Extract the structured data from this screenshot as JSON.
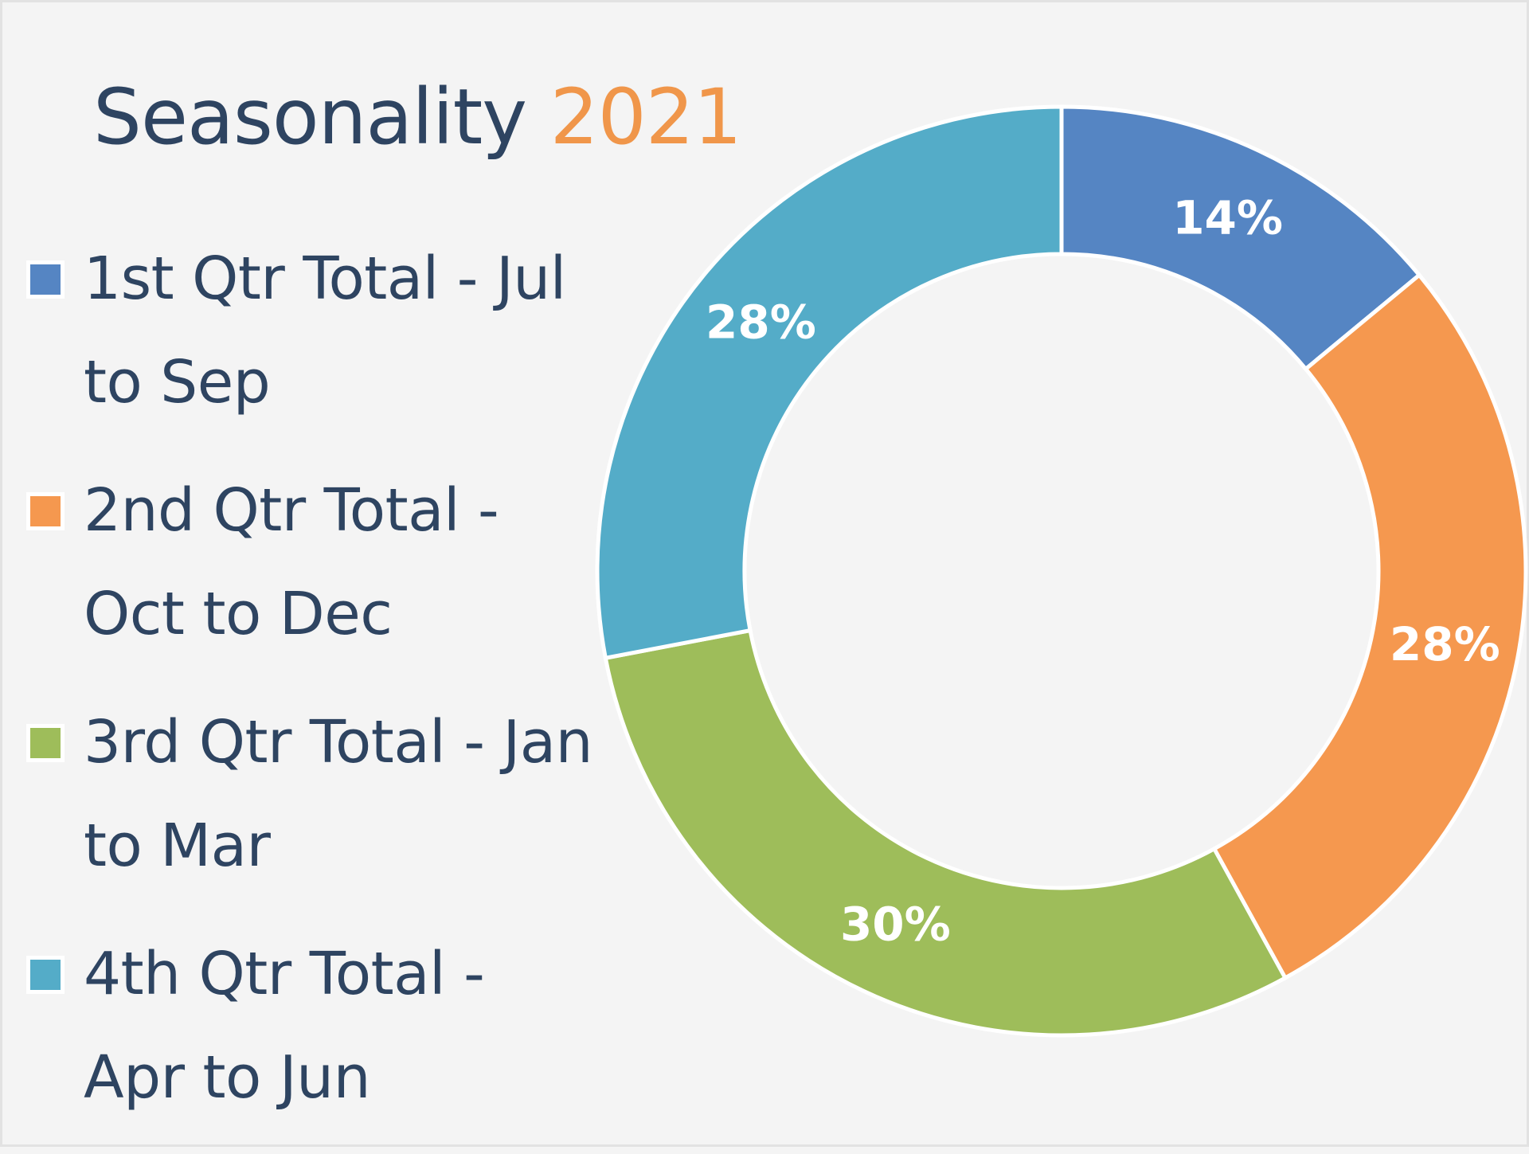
{
  "title": {
    "main": "Seasonality",
    "year": "2021"
  },
  "colors": {
    "background": "#f4f4f4",
    "title_text": "#2e4461",
    "title_year": "#f0964a",
    "q1": "#5585c3",
    "q2": "#f5984f",
    "q3": "#9ebd5a",
    "q4": "#54acc8"
  },
  "legend": [
    {
      "label": "1st Qtr Total - Jul to Sep",
      "color": "#5585c3"
    },
    {
      "label": "2nd Qtr Total - Oct to Dec",
      "color": "#f5984f"
    },
    {
      "label": "3rd Qtr Total - Jan to Mar",
      "color": "#9ebd5a"
    },
    {
      "label": "4th Qtr Total - Apr to Jun",
      "color": "#54acc8"
    }
  ],
  "chart_data": {
    "type": "pie",
    "variant": "doughnut",
    "title": "Seasonality 2021",
    "categories": [
      "1st Qtr Total - Jul to Sep",
      "2nd Qtr Total - Oct to Dec",
      "3rd Qtr Total - Jan to Mar",
      "4th Qtr Total - Apr to Jun"
    ],
    "values": [
      14,
      28,
      30,
      28
    ],
    "data_labels": [
      "14%",
      "28%",
      "30%",
      "28%"
    ],
    "colors": [
      "#5585c3",
      "#f5984f",
      "#9ebd5a",
      "#54acc8"
    ],
    "legend_position": "left"
  }
}
